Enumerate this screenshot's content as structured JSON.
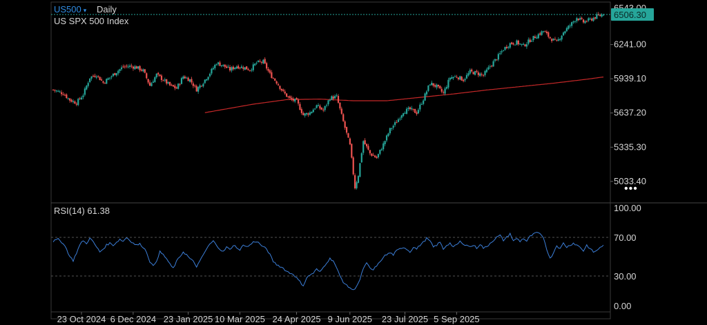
{
  "header": {
    "symbol": "US500",
    "symbol_caret": "▾",
    "period": "Daily",
    "instrument_name": "US SPX 500 Index",
    "more_icon": "more-dots-icon"
  },
  "colors": {
    "up": "#26a69a",
    "down": "#ef5350",
    "ma": "#c62828",
    "rsi": "#3c7fd9",
    "price_tag_bg": "#26a69a",
    "axis_text": "#d6d6d6",
    "grid": "#333333"
  },
  "price_panel": {
    "last_price_label": "6506.30",
    "hidden_top_label": "6543.00",
    "y_ticks": [
      "6241.00",
      "5939.10",
      "5637.20",
      "5335.30",
      "5033.40"
    ]
  },
  "rsi_panel": {
    "label": "RSI(14)",
    "value": "61.38",
    "y_ticks": [
      "100.00",
      "70.00",
      "30.00",
      "0.00"
    ]
  },
  "x_axis": {
    "ticks": [
      "23 Oct 2024",
      "6 Dec 2024",
      "23 Jan 2025",
      "10 Mar 2025",
      "24 Apr 2025",
      "9 Jun 2025",
      "23 Jul 2025",
      "5 Sep 2025"
    ]
  },
  "chart_data": {
    "type": "candlestick",
    "series": [
      {
        "name": "US SPX 500 Index",
        "kind": "candlestick",
        "keyframes_close": [
          [
            0,
            5842
          ],
          [
            6,
            5810
          ],
          [
            10,
            5752
          ],
          [
            14,
            5727
          ],
          [
            18,
            5800
          ],
          [
            22,
            5950
          ],
          [
            26,
            5975
          ],
          [
            30,
            5905
          ],
          [
            34,
            5950
          ],
          [
            38,
            6000
          ],
          [
            42,
            6045
          ],
          [
            46,
            6050
          ],
          [
            50,
            6040
          ],
          [
            54,
            6010
          ],
          [
            58,
            5880
          ],
          [
            62,
            5975
          ],
          [
            66,
            5930
          ],
          [
            70,
            5880
          ],
          [
            74,
            5855
          ],
          [
            78,
            5960
          ],
          [
            82,
            5930
          ],
          [
            86,
            5845
          ],
          [
            90,
            5910
          ],
          [
            94,
            5990
          ],
          [
            98,
            6080
          ],
          [
            102,
            6055
          ],
          [
            106,
            6020
          ],
          [
            110,
            6050
          ],
          [
            114,
            6040
          ],
          [
            118,
            6020
          ],
          [
            122,
            6080
          ],
          [
            126,
            6090
          ],
          [
            130,
            5980
          ],
          [
            134,
            5910
          ],
          [
            138,
            5820
          ],
          [
            142,
            5760
          ],
          [
            146,
            5740
          ],
          [
            150,
            5620
          ],
          [
            154,
            5640
          ],
          [
            158,
            5700
          ],
          [
            162,
            5660
          ],
          [
            166,
            5770
          ],
          [
            170,
            5780
          ],
          [
            174,
            5560
          ],
          [
            178,
            5350
          ],
          [
            181,
            4980
          ],
          [
            183,
            5090
          ],
          [
            186,
            5390
          ],
          [
            190,
            5280
          ],
          [
            194,
            5240
          ],
          [
            198,
            5360
          ],
          [
            202,
            5490
          ],
          [
            206,
            5560
          ],
          [
            210,
            5650
          ],
          [
            214,
            5670
          ],
          [
            218,
            5640
          ],
          [
            222,
            5760
          ],
          [
            226,
            5900
          ],
          [
            230,
            5870
          ],
          [
            234,
            5810
          ],
          [
            238,
            5950
          ],
          [
            242,
            5960
          ],
          [
            246,
            5930
          ],
          [
            250,
            6000
          ],
          [
            254,
            5990
          ],
          [
            258,
            5970
          ],
          [
            262,
            6050
          ],
          [
            266,
            6120
          ],
          [
            270,
            6200
          ],
          [
            274,
            6250
          ],
          [
            278,
            6260
          ],
          [
            282,
            6230
          ],
          [
            286,
            6280
          ],
          [
            290,
            6320
          ],
          [
            294,
            6360
          ],
          [
            298,
            6300
          ],
          [
            302,
            6260
          ],
          [
            306,
            6350
          ],
          [
            310,
            6410
          ],
          [
            314,
            6480
          ],
          [
            318,
            6440
          ],
          [
            322,
            6460
          ],
          [
            326,
            6490
          ],
          [
            330,
            6506.3
          ]
        ]
      },
      {
        "name": "Moving average",
        "kind": "line",
        "keyframes": [
          [
            91,
            5640
          ],
          [
            120,
            5715
          ],
          [
            140,
            5755
          ],
          [
            160,
            5760
          ],
          [
            180,
            5745
          ],
          [
            200,
            5745
          ],
          [
            220,
            5775
          ],
          [
            240,
            5805
          ],
          [
            260,
            5840
          ],
          [
            280,
            5870
          ],
          [
            300,
            5900
          ],
          [
            320,
            5935
          ],
          [
            330,
            5955
          ]
        ]
      },
      {
        "name": "RSI(14)",
        "kind": "line",
        "keyframes": [
          [
            0,
            66
          ],
          [
            3,
            68
          ],
          [
            6,
            64
          ],
          [
            8,
            58
          ],
          [
            10,
            50
          ],
          [
            12,
            46
          ],
          [
            14,
            54
          ],
          [
            16,
            62
          ],
          [
            18,
            67
          ],
          [
            20,
            63
          ],
          [
            22,
            70
          ],
          [
            24,
            65
          ],
          [
            26,
            60
          ],
          [
            28,
            55
          ],
          [
            30,
            58
          ],
          [
            32,
            62
          ],
          [
            34,
            64
          ],
          [
            36,
            62
          ],
          [
            38,
            65
          ],
          [
            40,
            68
          ],
          [
            42,
            66
          ],
          [
            44,
            70
          ],
          [
            46,
            67
          ],
          [
            48,
            64
          ],
          [
            50,
            62
          ],
          [
            52,
            63
          ],
          [
            54,
            60
          ],
          [
            56,
            55
          ],
          [
            58,
            45
          ],
          [
            60,
            40
          ],
          [
            62,
            46
          ],
          [
            64,
            55
          ],
          [
            66,
            52
          ],
          [
            68,
            48
          ],
          [
            70,
            42
          ],
          [
            72,
            38
          ],
          [
            74,
            45
          ],
          [
            76,
            50
          ],
          [
            78,
            55
          ],
          [
            80,
            52
          ],
          [
            82,
            48
          ],
          [
            84,
            45
          ],
          [
            86,
            40
          ],
          [
            88,
            45
          ],
          [
            90,
            52
          ],
          [
            92,
            58
          ],
          [
            94,
            63
          ],
          [
            96,
            66
          ],
          [
            98,
            62
          ],
          [
            100,
            58
          ],
          [
            102,
            55
          ],
          [
            104,
            60
          ],
          [
            106,
            57
          ],
          [
            108,
            62
          ],
          [
            110,
            60
          ],
          [
            112,
            56
          ],
          [
            114,
            63
          ],
          [
            116,
            60
          ],
          [
            118,
            62
          ],
          [
            120,
            65
          ],
          [
            122,
            66
          ],
          [
            124,
            63
          ],
          [
            126,
            60
          ],
          [
            128,
            58
          ],
          [
            130,
            52
          ],
          [
            132,
            45
          ],
          [
            134,
            42
          ],
          [
            136,
            40
          ],
          [
            138,
            38
          ],
          [
            140,
            35
          ],
          [
            142,
            33
          ],
          [
            144,
            32
          ],
          [
            146,
            28
          ],
          [
            148,
            24
          ],
          [
            150,
            20
          ],
          [
            152,
            28
          ],
          [
            154,
            31
          ],
          [
            156,
            33
          ],
          [
            158,
            37
          ],
          [
            160,
            34
          ],
          [
            162,
            39
          ],
          [
            164,
            44
          ],
          [
            166,
            48
          ],
          [
            168,
            46
          ],
          [
            170,
            38
          ],
          [
            172,
            30
          ],
          [
            174,
            24
          ],
          [
            176,
            20
          ],
          [
            178,
            18
          ],
          [
            180,
            15
          ],
          [
            182,
            20
          ],
          [
            184,
            26
          ],
          [
            186,
            38
          ],
          [
            188,
            43
          ],
          [
            190,
            38
          ],
          [
            192,
            36
          ],
          [
            194,
            41
          ],
          [
            196,
            44
          ],
          [
            198,
            50
          ],
          [
            200,
            52
          ],
          [
            202,
            54
          ],
          [
            204,
            52
          ],
          [
            206,
            56
          ],
          [
            208,
            58
          ],
          [
            210,
            60
          ],
          [
            212,
            58
          ],
          [
            214,
            55
          ],
          [
            216,
            60
          ],
          [
            218,
            58
          ],
          [
            220,
            62
          ],
          [
            222,
            65
          ],
          [
            224,
            69
          ],
          [
            226,
            66
          ],
          [
            228,
            60
          ],
          [
            230,
            62
          ],
          [
            232,
            65
          ],
          [
            234,
            58
          ],
          [
            236,
            62
          ],
          [
            238,
            64
          ],
          [
            240,
            60
          ],
          [
            242,
            62
          ],
          [
            244,
            66
          ],
          [
            246,
            62
          ],
          [
            248,
            63
          ],
          [
            250,
            60
          ],
          [
            252,
            62
          ],
          [
            254,
            59
          ],
          [
            256,
            63
          ],
          [
            258,
            59
          ],
          [
            260,
            60
          ],
          [
            262,
            64
          ],
          [
            264,
            67
          ],
          [
            266,
            70
          ],
          [
            268,
            72
          ],
          [
            270,
            67
          ],
          [
            272,
            70
          ],
          [
            274,
            74
          ],
          [
            276,
            66
          ],
          [
            278,
            69
          ],
          [
            280,
            66
          ],
          [
            282,
            69
          ],
          [
            284,
            66
          ],
          [
            286,
            71
          ],
          [
            288,
            73
          ],
          [
            290,
            75
          ],
          [
            292,
            73
          ],
          [
            294,
            70
          ],
          [
            296,
            58
          ],
          [
            298,
            48
          ],
          [
            300,
            54
          ],
          [
            302,
            62
          ],
          [
            304,
            58
          ],
          [
            306,
            64
          ],
          [
            308,
            60
          ],
          [
            310,
            62
          ],
          [
            312,
            64
          ],
          [
            314,
            62
          ],
          [
            316,
            60
          ],
          [
            318,
            56
          ],
          [
            320,
            62
          ],
          [
            322,
            58
          ],
          [
            324,
            55
          ],
          [
            326,
            56
          ],
          [
            328,
            60
          ],
          [
            330,
            61.38
          ]
        ]
      }
    ],
    "y_range_price": [
      4850,
      6610
    ],
    "y_range_rsi": [
      0,
      100
    ],
    "rsi_levels": [
      70,
      30
    ],
    "candle_count": 331,
    "grid": false,
    "legend": "none",
    "xlabel": "",
    "ylabel": ""
  }
}
